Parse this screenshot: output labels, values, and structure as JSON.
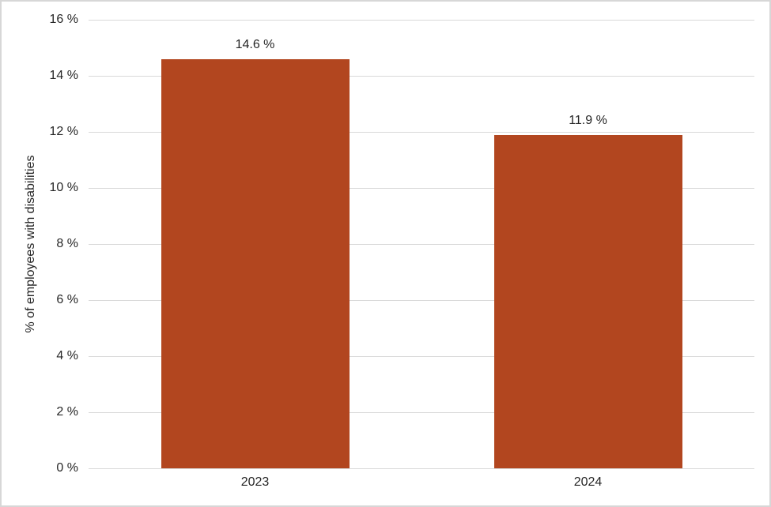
{
  "chart_data": {
    "type": "bar",
    "categories": [
      "2023",
      "2024"
    ],
    "values": [
      14.6,
      11.9
    ],
    "value_labels": [
      "14.6 %",
      "11.9 %"
    ],
    "title": "",
    "xlabel": "",
    "ylabel": "% of employees with disabilities",
    "ylim": [
      0,
      16
    ],
    "ytick_step": 2,
    "ytick_labels": [
      "0 %",
      "2 %",
      "4 %",
      "6 %",
      "8 %",
      "10 %",
      "12 %",
      "14 %",
      "16 %"
    ],
    "grid": true,
    "legend_position": "none",
    "bar_color": "#b2461f",
    "gridline_color": "#d9d9d9",
    "text_color": "#262626",
    "border_color": "#d7d7d7",
    "background_color": "#ffffff"
  }
}
